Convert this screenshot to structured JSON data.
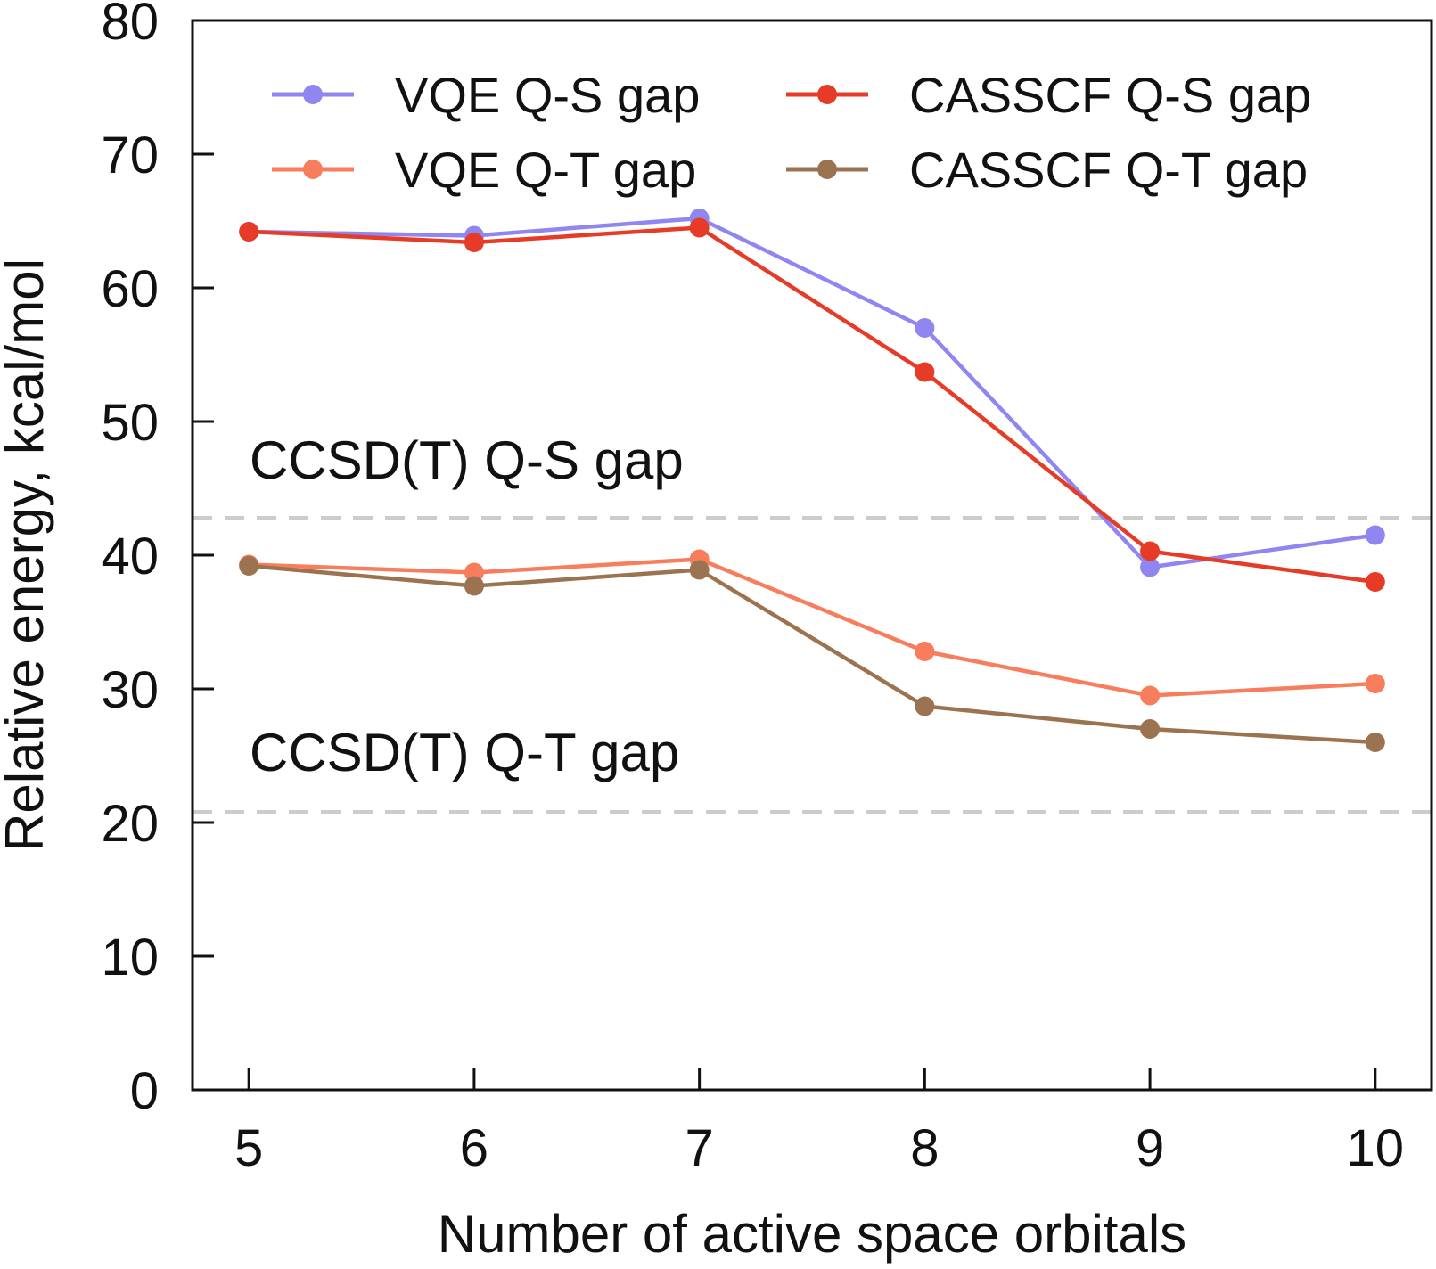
{
  "chart_data": {
    "type": "line",
    "xlabel": "Number of active space orbitals",
    "ylabel": "Relative energy, kcal/mol",
    "x": [
      5,
      6,
      7,
      8,
      9,
      10
    ],
    "xticks": [
      "5",
      "6",
      "7",
      "8",
      "9",
      "10"
    ],
    "xlim": [
      4.75,
      10.25
    ],
    "ylim": [
      0,
      80
    ],
    "yticks": [
      "0",
      "10",
      "20",
      "30",
      "40",
      "50",
      "60",
      "70",
      "80"
    ],
    "grid": false,
    "legend_position": "top",
    "series": [
      {
        "name": "VQE Q-S gap",
        "color": "#8f86f2",
        "values": [
          64.2,
          63.9,
          65.2,
          57.0,
          39.1,
          41.5
        ]
      },
      {
        "name": "CASSCF Q-S gap",
        "color": "#e63b26",
        "values": [
          64.2,
          63.4,
          64.5,
          53.7,
          40.3,
          38.0
        ]
      },
      {
        "name": "VQE Q-T gap",
        "color": "#f77d5d",
        "values": [
          39.3,
          38.7,
          39.7,
          32.8,
          29.5,
          30.4
        ]
      },
      {
        "name": "CASSCF Q-T gap",
        "color": "#9c7350",
        "values": [
          39.2,
          37.7,
          38.9,
          28.7,
          27.0,
          26.0
        ]
      }
    ],
    "reference_lines": [
      {
        "label": "CCSD(T) Q-S gap",
        "value": 42.8,
        "color": "#cccccc"
      },
      {
        "label": "CCSD(T) Q-T gap",
        "value": 20.8,
        "color": "#cccccc"
      }
    ]
  }
}
